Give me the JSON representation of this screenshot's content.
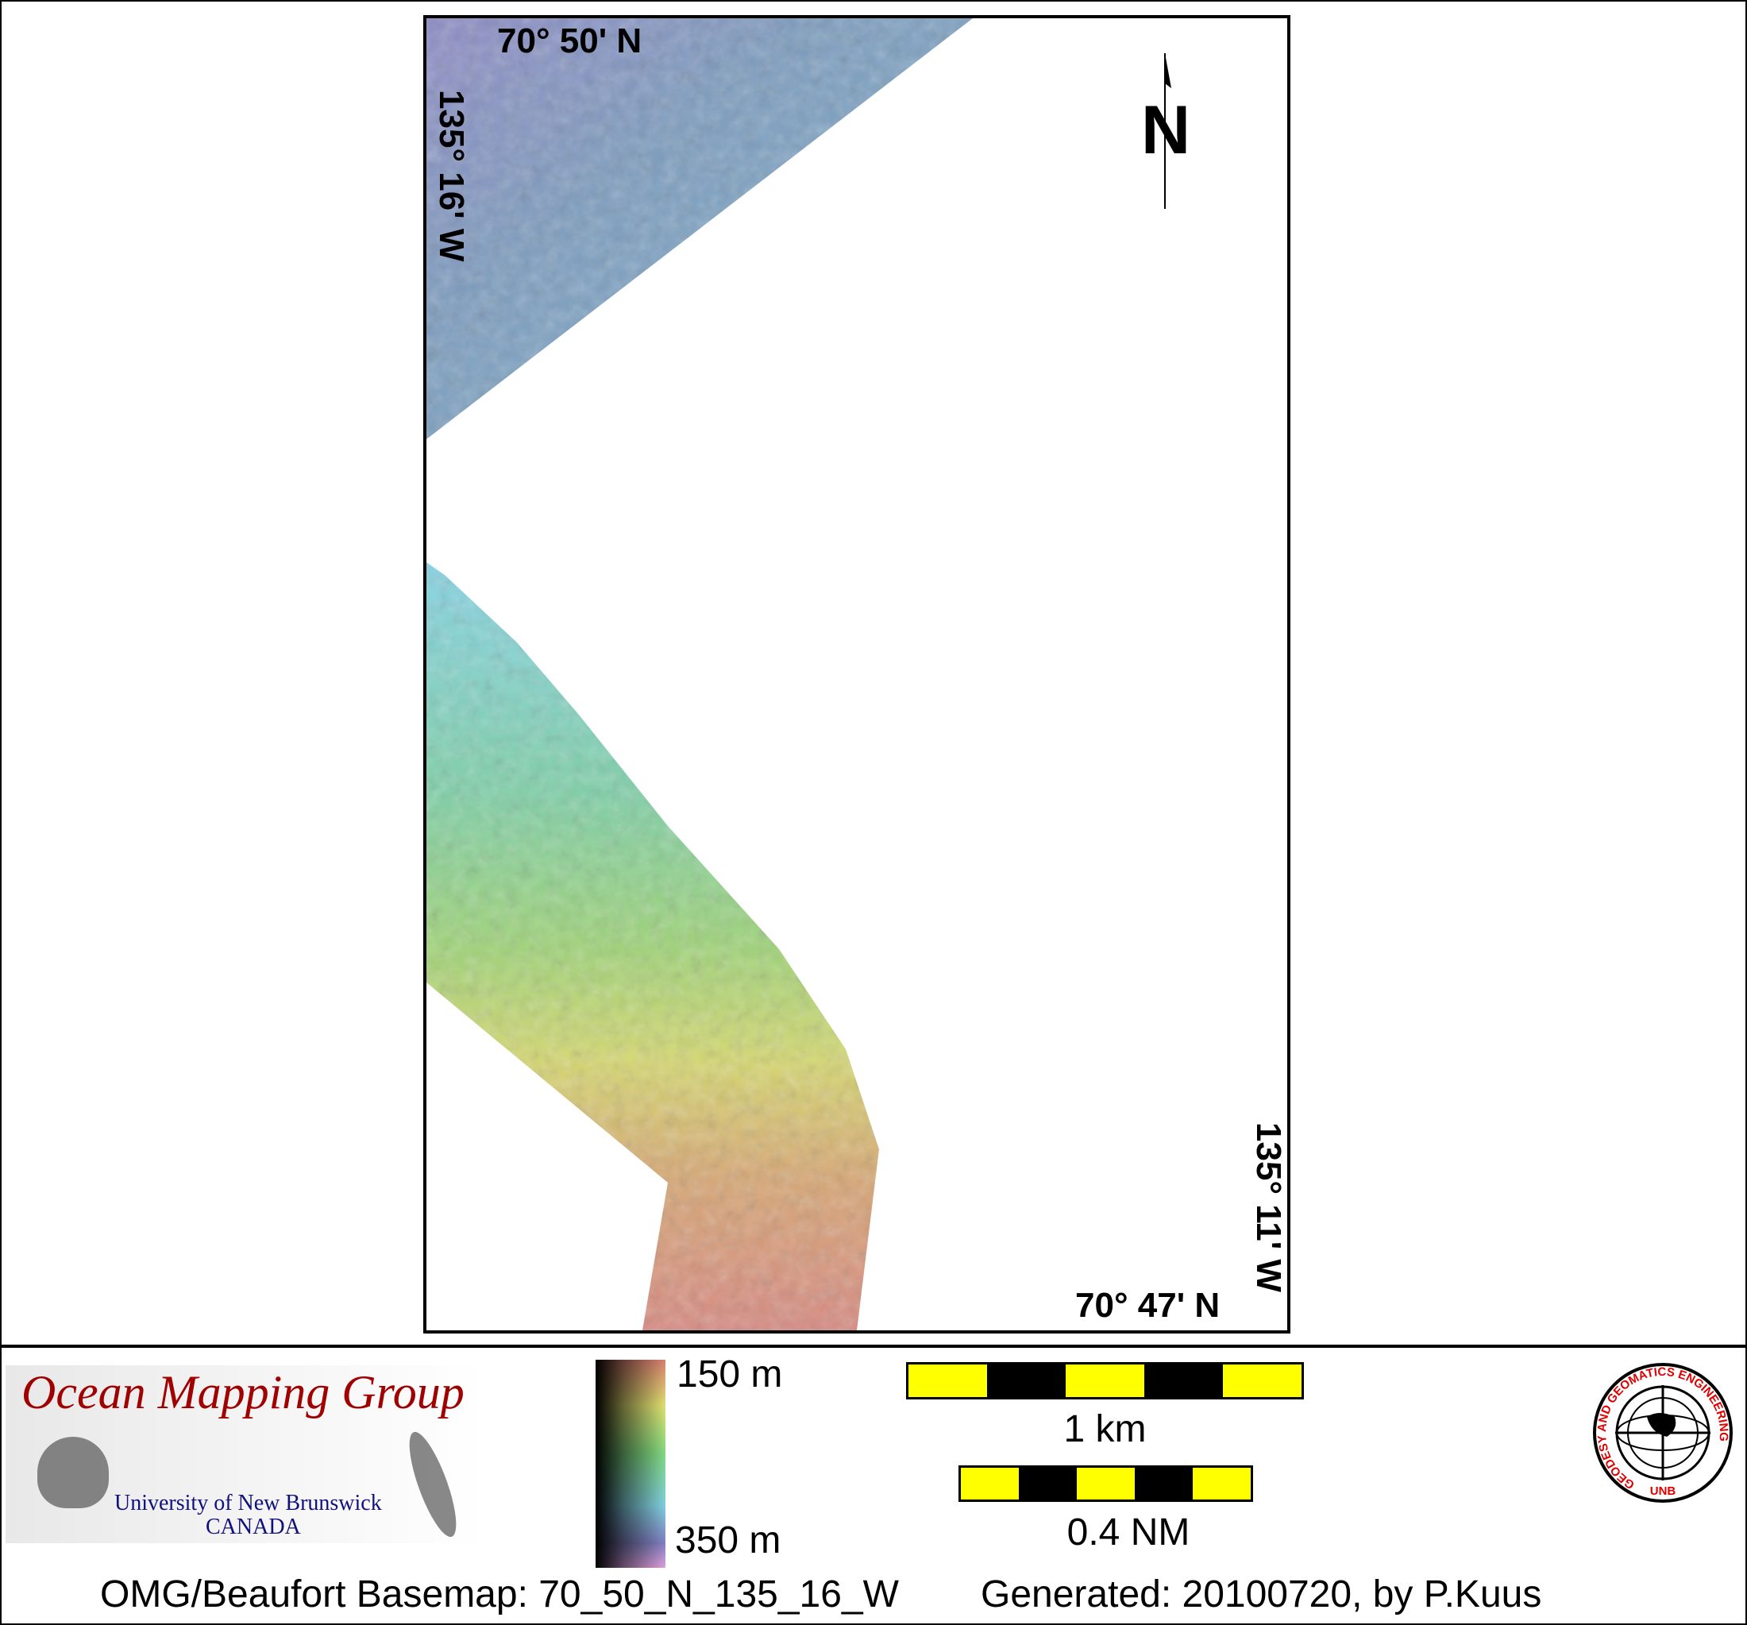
{
  "map": {
    "lat_top": "70° 50' N",
    "lon_left": "135° 16' W",
    "lat_bottom": "70° 47' N",
    "lon_right": "135° 11' W",
    "north_label": "N"
  },
  "legend": {
    "depth_min": "150 m",
    "depth_max": "350 m",
    "scale_km": "1 km",
    "scale_nm": "0.4 NM",
    "scale_bar_color": "#ffff00"
  },
  "logos": {
    "omg_title": "Ocean Mapping Group",
    "omg_sub1": "University of New Brunswick",
    "omg_sub2": "CANADA",
    "unb_ring": "GEODESY AND GEOMATICS ENGINEERING",
    "unb_bottom": "UNB"
  },
  "footer": {
    "basemap": "OMG/Beaufort Basemap: 70_50_N_135_16_W",
    "generated": "Generated: 20100720, by P.Kuus"
  }
}
